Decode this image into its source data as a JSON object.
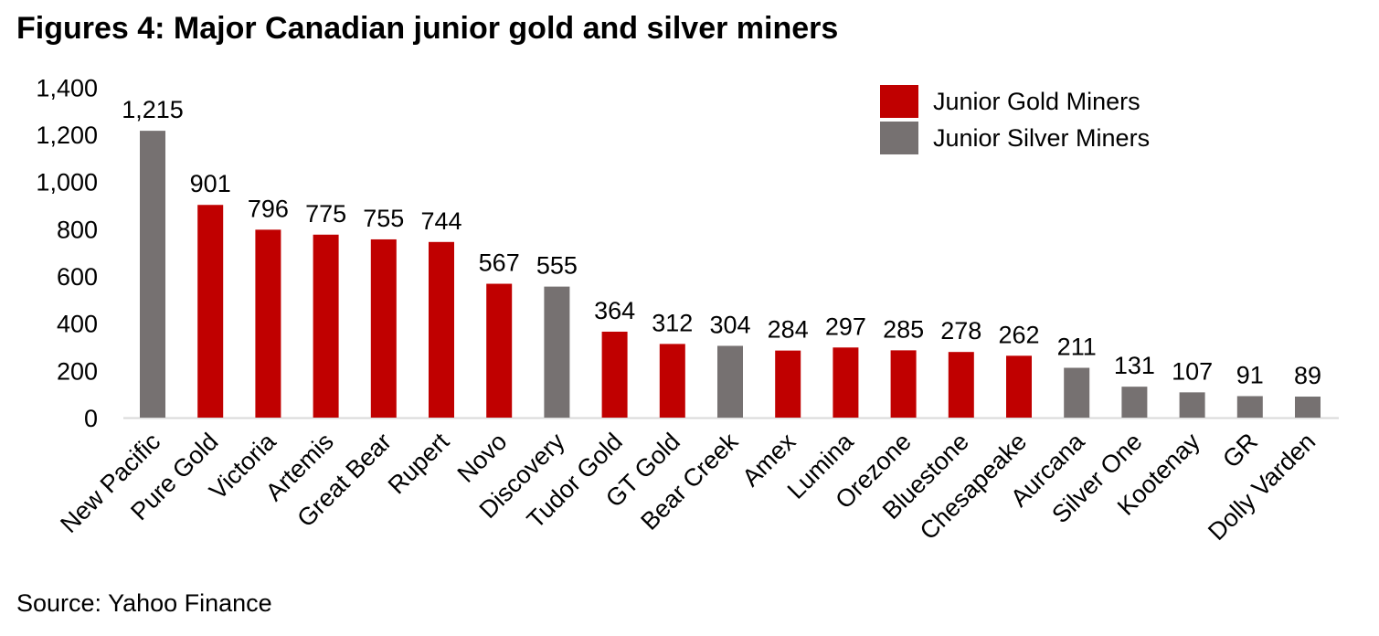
{
  "title": "Figures 4: Major Canadian junior gold and silver miners",
  "source": "Source: Yahoo Finance",
  "chart_data": {
    "type": "bar",
    "title": "Figures 4: Major Canadian junior gold and silver miners",
    "xlabel": "",
    "ylabel": "",
    "ylim": [
      0,
      1400
    ],
    "yticks": [
      0,
      200,
      400,
      600,
      800,
      1000,
      1200,
      1400
    ],
    "ytick_labels": [
      "0",
      "200",
      "400",
      "600",
      "800",
      "1,000",
      "1,200",
      "1,400"
    ],
    "grid": false,
    "legend_position": "top-right",
    "categories": [
      "New Pacific",
      "Pure Gold",
      "Victoria",
      "Artemis",
      "Great Bear",
      "Rupert",
      "Novo",
      "Discovery",
      "Tudor Gold",
      "GT Gold",
      "Bear Creek",
      "Amex",
      "Lumina",
      "Orezone",
      "Bluestone",
      "Chesapeake",
      "Aurcana",
      "Silver One",
      "Kootenay",
      "GR",
      "Dolly Varden"
    ],
    "values": [
      1215,
      901,
      796,
      775,
      755,
      744,
      567,
      555,
      364,
      312,
      304,
      284,
      297,
      285,
      278,
      262,
      211,
      131,
      107,
      91,
      89
    ],
    "value_labels": [
      "1,215",
      "901",
      "796",
      "775",
      "755",
      "744",
      "567",
      "555",
      "364",
      "312",
      "304",
      "284",
      "297",
      "285",
      "278",
      "262",
      "211",
      "131",
      "107",
      "91",
      "89"
    ],
    "groups": [
      "silver",
      "gold",
      "gold",
      "gold",
      "gold",
      "gold",
      "gold",
      "silver",
      "gold",
      "gold",
      "silver",
      "gold",
      "gold",
      "gold",
      "gold",
      "gold",
      "silver",
      "silver",
      "silver",
      "silver",
      "silver"
    ],
    "series": [
      {
        "key": "gold",
        "name": "Junior Gold Miners",
        "color": "#C00000"
      },
      {
        "key": "silver",
        "name": "Junior Silver Miners",
        "color": "#767171"
      }
    ]
  }
}
